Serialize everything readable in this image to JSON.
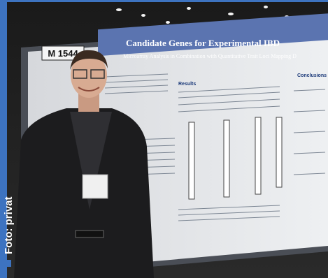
{
  "caption": "Foto: privat",
  "poster": {
    "booth": "M 1544",
    "title": "Candidate Genes for Experimental IBD",
    "subtitle": "Microarray Analysis in Combination with Quantitative Trait Loci Mapping D",
    "sections": [
      "Results",
      "Conclusions"
    ]
  }
}
